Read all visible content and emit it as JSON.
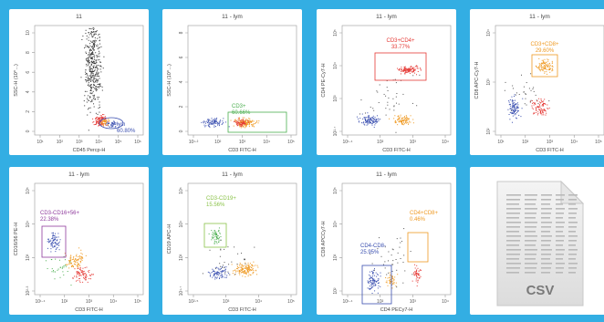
{
  "colors": {
    "background": "#33aee3",
    "tile": "#ffffff",
    "gate_blue": "#3a4fb0",
    "gate_green": "#4caf50",
    "gate_red": "#e53935",
    "gate_orange": "#ef9a23",
    "gate_purple": "#8e3a9c",
    "gate_lightgreen": "#8bc34a"
  },
  "plots": [
    {
      "title": "11",
      "xlabel": "CD45 Percp-H",
      "ylabel": "SSC-H (10^...)",
      "xticks": [
        "10¹",
        "10²",
        "10³",
        "10⁴",
        "10⁵",
        "10⁶"
      ],
      "yticks": [
        "10",
        "8",
        "6",
        "4",
        "2",
        "0"
      ],
      "gate": {
        "label": "lym",
        "value": "60.80%",
        "color": "#3a4fb0"
      }
    },
    {
      "title": "11 - lym",
      "xlabel": "CD3 FITC-H",
      "ylabel": "SSC-H (10^...)",
      "xticks": [
        "10¹·²",
        "10²",
        "10³",
        "10⁴",
        "10⁵"
      ],
      "yticks": [
        "8",
        "6",
        "4",
        "2",
        "0"
      ],
      "gate": {
        "label": "CD3+",
        "value": "60.66%",
        "color": "#4caf50"
      }
    },
    {
      "title": "11 - lym",
      "xlabel": "CD3 FITC-H",
      "ylabel": "CD4 PE-Cy7-H",
      "xticks": [
        "10¹·⁴",
        "10²",
        "10³",
        "10⁴"
      ],
      "yticks": [
        "10⁵",
        "10⁴",
        "10³",
        "10²·⁷"
      ],
      "gate": {
        "label": "CD3+CD4+",
        "value": "33.77%",
        "color": "#e53935"
      }
    },
    {
      "title": "11 - lym",
      "xlabel": "CD3 FITC-H",
      "ylabel": "CD8 APC-Cy7-H",
      "xticks": [
        "10¹",
        "10²",
        "10³",
        "10⁴",
        "10⁵"
      ],
      "yticks": [
        "10⁴",
        "10³",
        "10²"
      ],
      "gate": {
        "label": "CD3+CD8+",
        "value": "29.60%",
        "color": "#ef9a23"
      }
    },
    {
      "title": "11 - lym",
      "xlabel": "CD3 FITC-H",
      "ylabel": "CD16/56 PE-H",
      "xticks": [
        "10¹·⁴",
        "10²",
        "10³",
        "10⁴",
        "10⁵"
      ],
      "yticks": [
        "10⁵",
        "10⁴",
        "10³",
        "10²·³"
      ],
      "gate": {
        "label": "CD3-CD16+56+",
        "value": "22.38%",
        "color": "#8e3a9c"
      }
    },
    {
      "title": "11 - lym",
      "xlabel": "CD3 FITC-H",
      "ylabel": "CD19 APC-H",
      "xticks": [
        "10²·⁵",
        "10³",
        "10⁴",
        "10⁵"
      ],
      "yticks": [
        "10⁵",
        "10⁴",
        "10³",
        "10¹·⁷"
      ],
      "gate": {
        "label": "CD3-CD19+",
        "value": "15.56%",
        "color": "#8bc34a"
      }
    },
    {
      "title": "11 - lym",
      "xlabel": "CD4 PECy7-H",
      "ylabel": "CD8 APCCy7-H",
      "xticks": [
        "10¹·⁴",
        "10²",
        "10³",
        "10⁴"
      ],
      "yticks": [
        "10⁵",
        "10⁴",
        "10³",
        "10²"
      ],
      "gate": {
        "label": "CD4+CD8+",
        "value": "0.46%",
        "color": "#ef9a23"
      },
      "gate2": {
        "label": "CD4-CD8-",
        "value": "25.95%",
        "color": "#3a4fb0"
      }
    }
  ],
  "csv_file": {
    "label": "CSV",
    "icon": "csv-file-icon"
  }
}
